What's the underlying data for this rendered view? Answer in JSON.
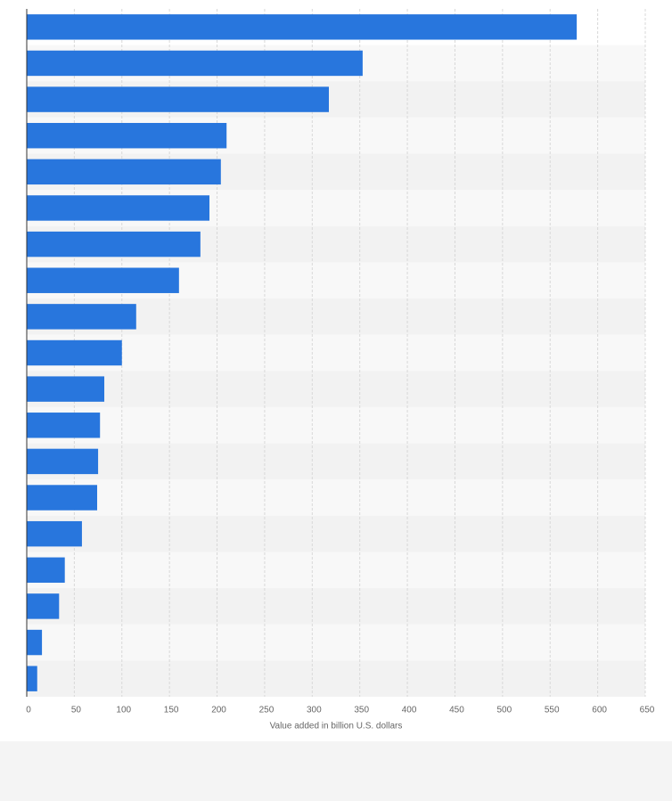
{
  "chart_data": {
    "type": "bar",
    "orientation": "horizontal",
    "categories": [
      null,
      null,
      null,
      null,
      null,
      null,
      null,
      null,
      null,
      null,
      null,
      null,
      null,
      null,
      null,
      null,
      null,
      null,
      null
    ],
    "values": [
      578,
      353,
      317.5,
      210,
      204,
      192,
      182.5,
      160,
      115,
      100,
      81.5,
      77,
      75,
      74,
      58,
      40,
      34,
      16,
      11
    ],
    "color": "#2876dd",
    "xlabel": "Value added in billion U.S. dollars",
    "xlim": [
      0,
      650
    ],
    "xticks": [
      0,
      50,
      100,
      150,
      200,
      250,
      300,
      350,
      400,
      450,
      500,
      550,
      600,
      650
    ],
    "grid": true
  }
}
